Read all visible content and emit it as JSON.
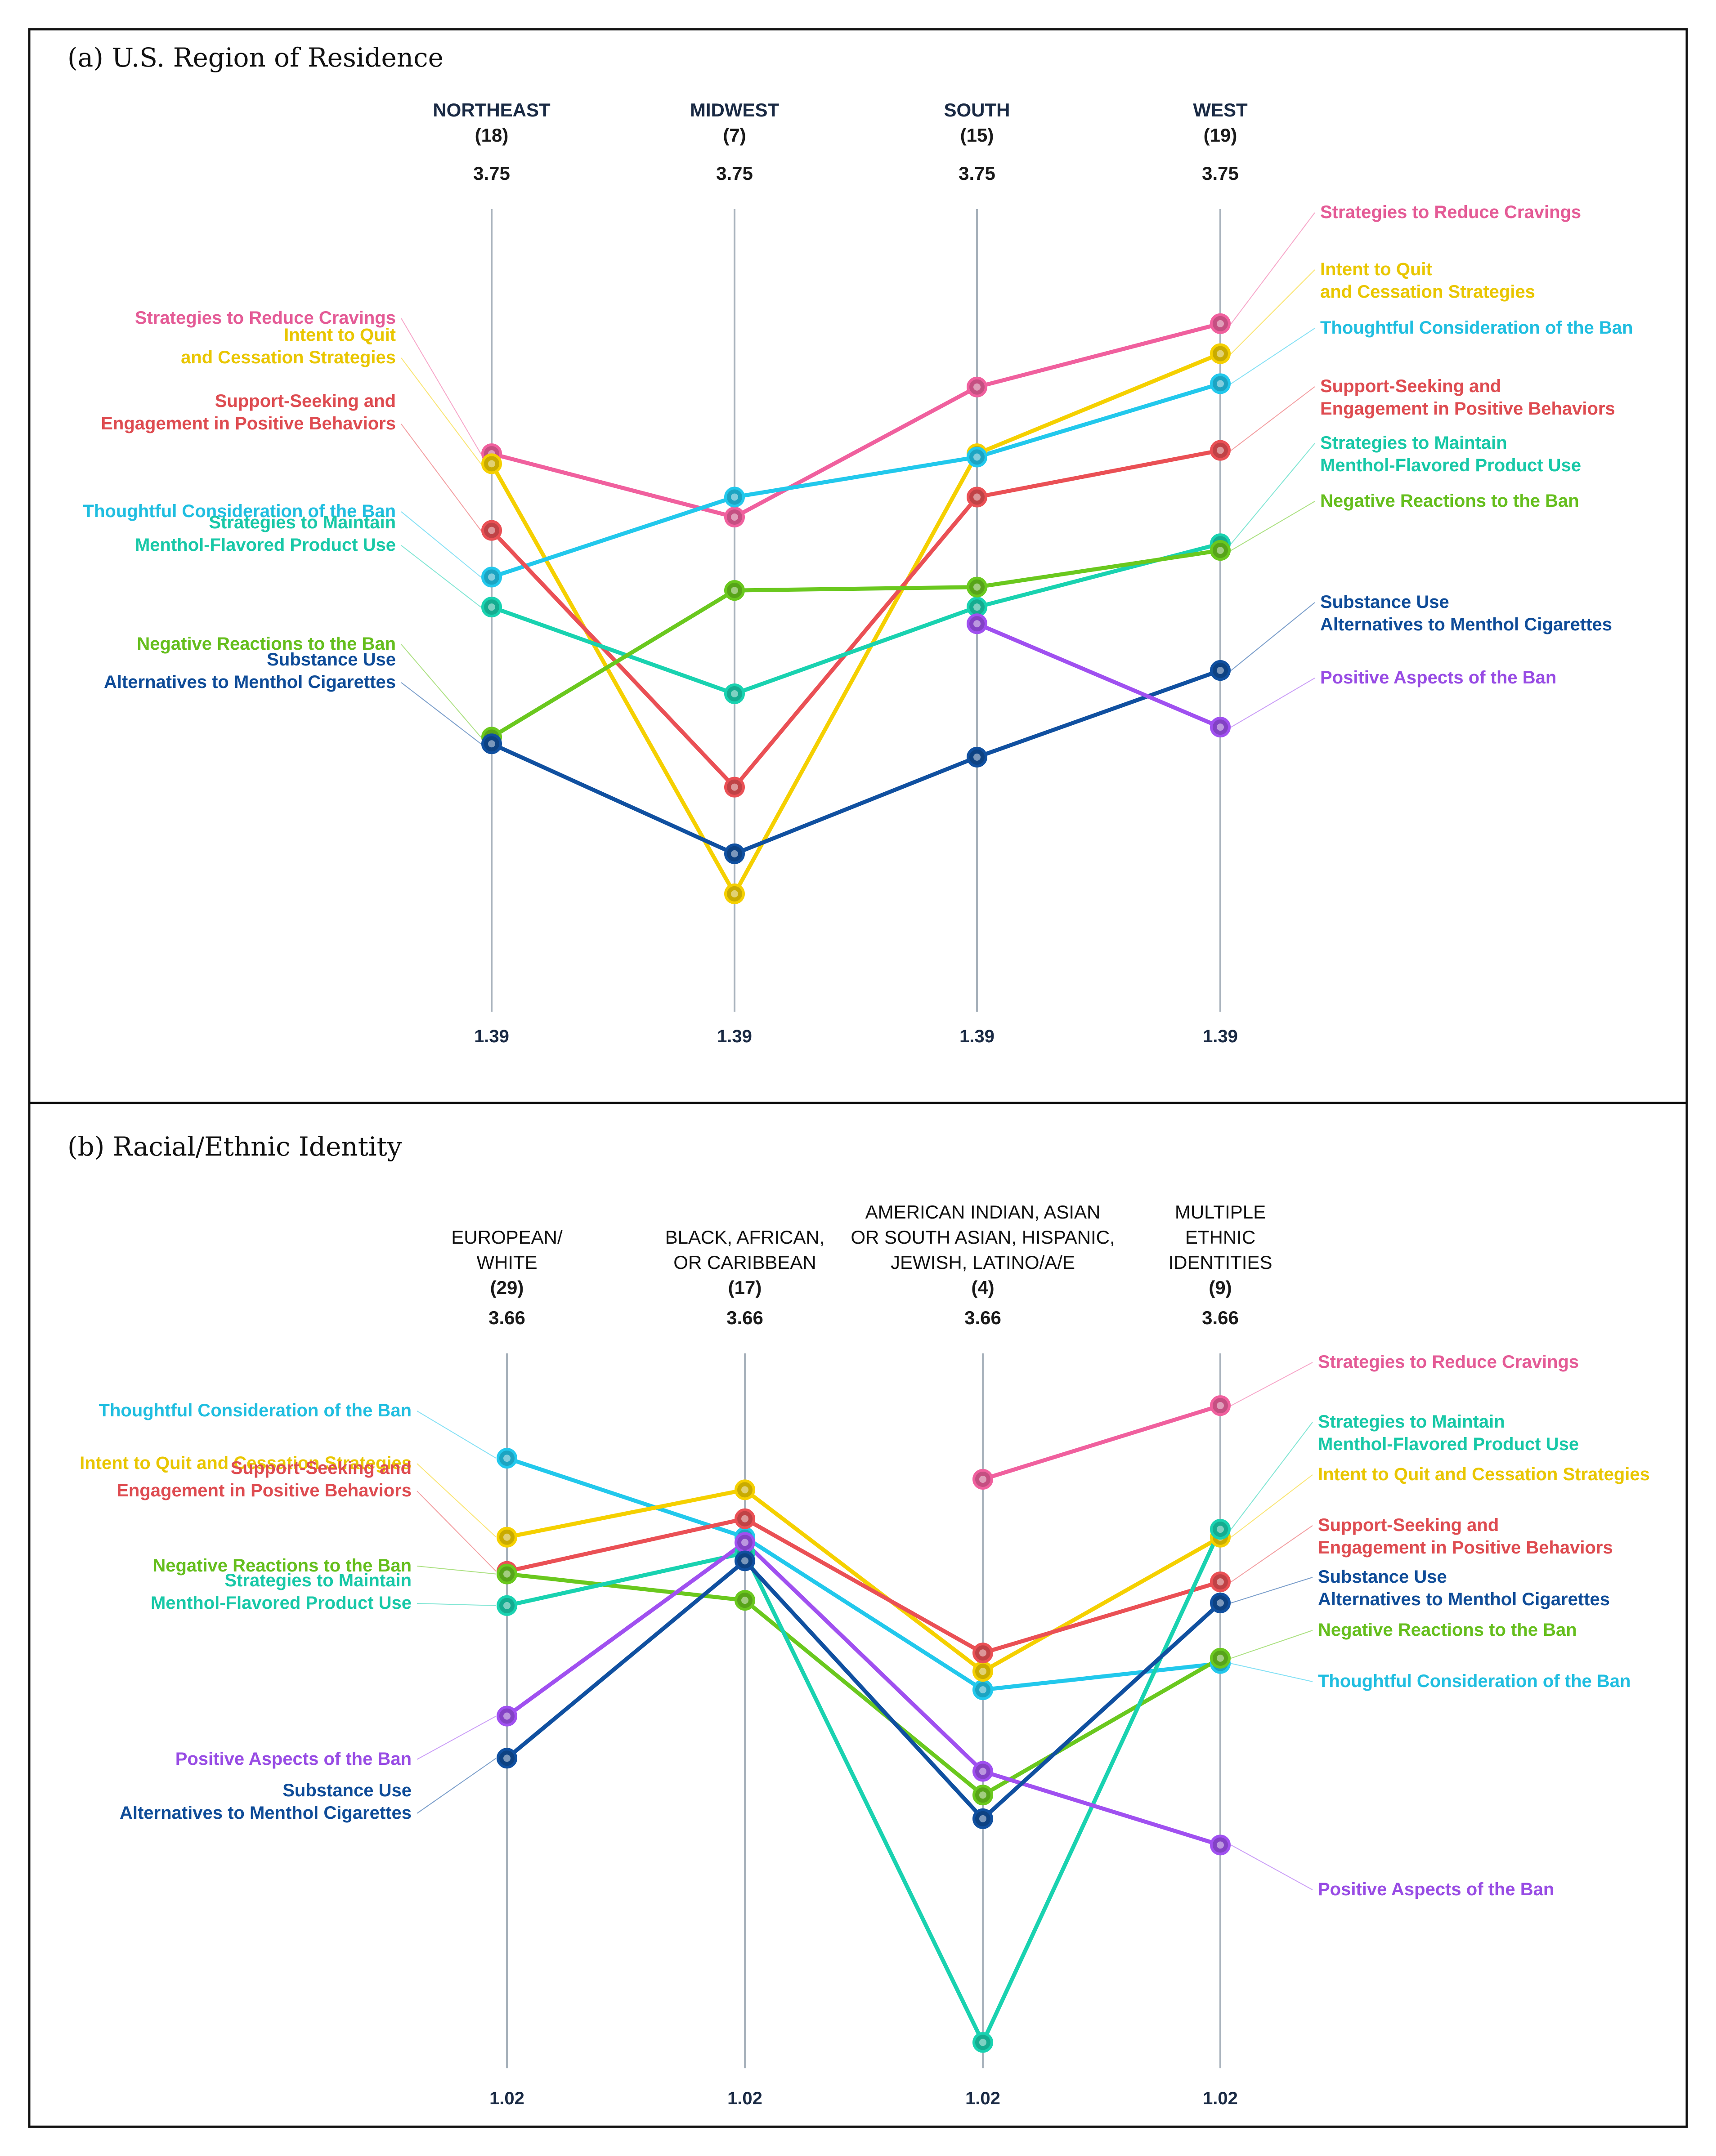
{
  "chart_data": [
    {
      "type": "parallel_coordinates",
      "title": "(a) U.S. Region of Residence",
      "axes": [
        {
          "name": "NORTHEAST",
          "n": "(18)",
          "max_label": "3.75",
          "min_label": "1.39"
        },
        {
          "name": "MIDWEST",
          "n": "(7)",
          "max_label": "3.75",
          "min_label": "1.39"
        },
        {
          "name": "SOUTH",
          "n": "(15)",
          "max_label": "3.75",
          "min_label": "1.39"
        },
        {
          "name": "WEST",
          "n": "(19)",
          "max_label": "3.75",
          "min_label": "1.39"
        }
      ],
      "ylim": [
        1.39,
        3.75
      ],
      "series": [
        {
          "name": "Strategies to Reduce Cravings",
          "color": "#f0609e",
          "values": [
            3.05,
            2.86,
            3.25,
            3.44
          ]
        },
        {
          "name": "Intent to Quit and Cessation Strategies",
          "left_label": "Intent to Quit\nand Cessation Strategies",
          "right_label": "Intent to Quit\nand Cessation Strategies",
          "color": "#f5d000",
          "values": [
            3.02,
            1.73,
            3.05,
            3.35
          ]
        },
        {
          "name": "Thoughtful Consideration of the Ban",
          "color": "#22c8ec",
          "values": [
            2.68,
            2.92,
            3.04,
            3.26
          ]
        },
        {
          "name": "Support-Seeking and Engagement in Positive Behaviors",
          "left_label": "Support-Seeking and\nEngagement in Positive Behaviors",
          "right_label": "Support-Seeking and\nEngagement in Positive Behaviors",
          "color": "#ea5055",
          "values": [
            2.82,
            2.05,
            2.92,
            3.06
          ]
        },
        {
          "name": "Strategies to Maintain Menthol-Flavored Product Use",
          "left_label": "Strategies to Maintain\nMenthol-Flavored Product Use",
          "right_label": "Strategies to Maintain\nMenthol-Flavored Product Use",
          "color": "#19d2b0",
          "values": [
            2.59,
            2.33,
            2.59,
            2.78
          ]
        },
        {
          "name": "Negative Reactions to the Ban",
          "color": "#6ac81e",
          "values": [
            2.2,
            2.64,
            2.65,
            2.76
          ]
        },
        {
          "name": "Substance Use Alternatives to Menthol Cigarettes",
          "left_label": "Substance Use\nAlternatives to Menthol Cigarettes",
          "right_label": "Substance Use\nAlternatives to Menthol Cigarettes",
          "color": "#1050a0",
          "values": [
            2.18,
            1.85,
            2.14,
            2.4
          ]
        },
        {
          "name": "Positive Aspects of the Ban",
          "color": "#a050f0",
          "values": [
            null,
            null,
            2.54,
            2.23
          ]
        }
      ]
    },
    {
      "type": "parallel_coordinates",
      "title": "(b) Racial/Ethnic Identity",
      "axes": [
        {
          "name": "EUROPEAN/\nWHITE",
          "n": "(29)",
          "max_label": "3.66",
          "min_label": "1.02"
        },
        {
          "name": "BLACK, AFRICAN,\nOR CARIBBEAN",
          "n": "(17)",
          "max_label": "3.66",
          "min_label": "1.02"
        },
        {
          "name": "AMERICAN INDIAN, ASIAN\nOR SOUTH ASIAN, HISPANIC,\nJEWISH, LATINO/A/E",
          "n": "(4)",
          "max_label": "3.66",
          "min_label": "1.02"
        },
        {
          "name": "MULTIPLE\nETHNIC\nIDENTITIES",
          "n": "(9)",
          "max_label": "3.66",
          "min_label": "1.02"
        }
      ],
      "ylim": [
        1.02,
        3.66
      ],
      "series": [
        {
          "name": "Thoughtful Consideration of the Ban",
          "color": "#22c8ec",
          "values": [
            3.33,
            3.03,
            2.45,
            2.55
          ]
        },
        {
          "name": "Intent to Quit and Cessation Strategies",
          "color": "#f5d000",
          "values": [
            3.03,
            3.21,
            2.52,
            3.03
          ]
        },
        {
          "name": "Support-Seeking and Engagement in Positive Behaviors",
          "left_label": "Support-Seeking and\nEngagement in Positive Behaviors",
          "right_label": "Support-Seeking and\nEngagement in Positive Behaviors",
          "color": "#ea5055",
          "values": [
            2.9,
            3.1,
            2.59,
            2.86
          ]
        },
        {
          "name": "Negative Reactions to the Ban",
          "color": "#6ac81e",
          "values": [
            2.89,
            2.79,
            2.05,
            2.57
          ]
        },
        {
          "name": "Strategies to Maintain Menthol-Flavored Product Use",
          "left_label": "Strategies to Maintain\nMenthol-Flavored Product Use",
          "right_label": "Strategies to Maintain\nMenthol-Flavored Product Use",
          "color": "#19d2b0",
          "values": [
            2.77,
            2.97,
            1.11,
            3.06
          ]
        },
        {
          "name": "Positive Aspects of the Ban",
          "color": "#a050f0",
          "values": [
            2.35,
            3.01,
            2.14,
            1.86
          ]
        },
        {
          "name": "Substance Use Alternatives to Menthol Cigarettes",
          "left_label": "Substance Use\nAlternatives to Menthol Cigarettes",
          "right_label": "Substance Use\nAlternatives to Menthol Cigarettes",
          "color": "#1050a0",
          "values": [
            2.19,
            2.94,
            1.96,
            2.78
          ]
        },
        {
          "name": "Strategies to Reduce Cravings",
          "color": "#f0609e",
          "values": [
            null,
            null,
            3.25,
            3.53
          ]
        }
      ]
    }
  ]
}
